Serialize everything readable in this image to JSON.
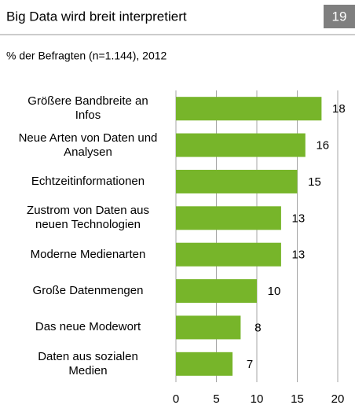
{
  "chart_data": {
    "type": "bar",
    "orientation": "horizontal",
    "title": "Big Data wird breit interpretiert",
    "page_number": "19",
    "subtitle": "% der Befragten (n=1.144), 2012",
    "categories": [
      "Größere Bandbreite an Infos",
      "Neue Arten von Daten und Analysen",
      "Echtzeitinformationen",
      "Zustrom von Daten aus neuen Technologien",
      "Moderne Medienarten",
      "Große Datenmengen",
      "Das neue Modewort",
      "Daten aus sozialen Medien"
    ],
    "values": [
      18,
      16,
      15,
      13,
      13,
      10,
      8,
      7
    ],
    "color": "#77b52a",
    "xlim": [
      0,
      20
    ],
    "xticks": [
      0,
      5,
      10,
      15,
      20
    ],
    "grid": true
  }
}
